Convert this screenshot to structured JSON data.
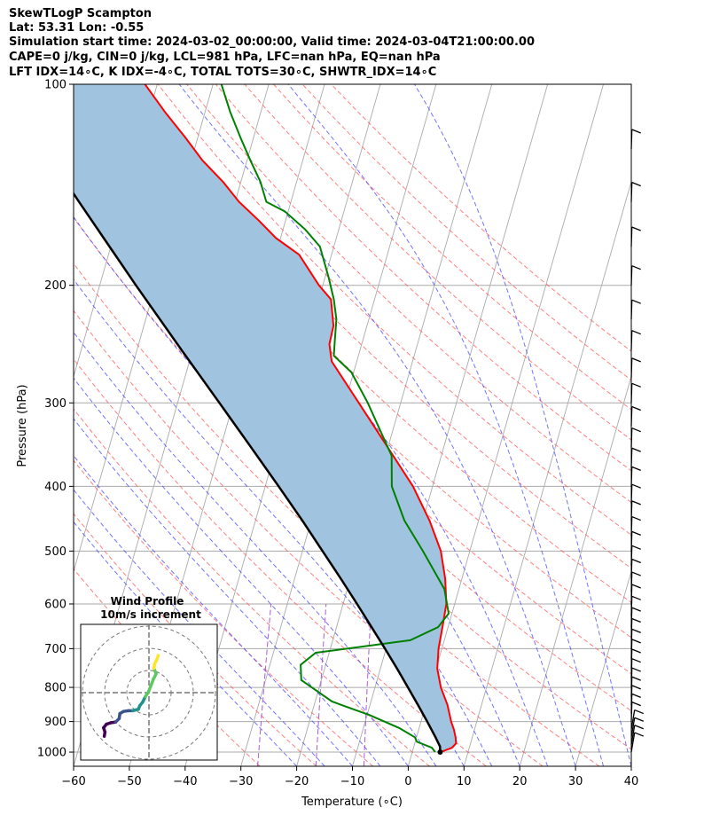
{
  "header": {
    "line1": "SkewTLogP Scampton",
    "line2": "Lat: 53.31   Lon: -0.55",
    "line3": "Simulation start time: 2024-03-02_00:00:00, Valid time: 2024-03-04T21:00:00.00",
    "line4": "CAPE=0 j/kg, CIN=0 j/kg, LCL=981 hPa, LFC=nan hPa, EQ=nan hPa",
    "line5": "LFT IDX=14∘C, K IDX=-4∘C, TOTAL TOTS=30∘C, SHWTR_IDX=14∘C"
  },
  "colors": {
    "temperature": "#ff0000",
    "dewpoint": "#008000",
    "parcel": "#000000",
    "cape_fill": "#a0c4e0",
    "dry_adiabat": "#ff5555",
    "moist_adiabat": "#4444ff",
    "mixing_ratio": "#9933cc",
    "isotherm": "#aaaaaa"
  },
  "chart_data": [
    {
      "type": "line",
      "subtype": "skew-t log-p",
      "xlabel": "Pressure (hPa)",
      "x_axis_label": "Temperature (∘C)",
      "ylabel": "Pressure (hPa)",
      "xlim": [
        -60,
        40
      ],
      "ylim": [
        1050,
        100
      ],
      "y_scale": "log",
      "x_ticks": [
        "−60",
        "−50",
        "−40",
        "−30",
        "−20",
        "−10",
        "0",
        "10",
        "20",
        "30",
        "40"
      ],
      "x_tick_values": [
        -60,
        -50,
        -40,
        -30,
        -20,
        -10,
        0,
        10,
        20,
        30,
        40
      ],
      "y_ticks": [
        "100",
        "200",
        "300",
        "400",
        "500",
        "600",
        "700",
        "800",
        "900",
        "1000"
      ],
      "y_tick_values": [
        100,
        200,
        300,
        400,
        500,
        600,
        700,
        800,
        900,
        1000
      ],
      "grid": true,
      "series": [
        {
          "key": "temperature",
          "points": [
            [
              1000,
              5.1
            ],
            [
              985,
              6.9
            ],
            [
              970,
              7.4
            ],
            [
              950,
              7.0
            ],
            [
              925,
              6.3
            ],
            [
              900,
              5.4
            ],
            [
              850,
              3.9
            ],
            [
              800,
              1.8
            ],
            [
              750,
              0.2
            ],
            [
              700,
              -0.6
            ],
            [
              650,
              -1.0
            ],
            [
              600,
              -1.5
            ],
            [
              550,
              -3.0
            ],
            [
              500,
              -5.2
            ],
            [
              450,
              -8.8
            ],
            [
              400,
              -13.5
            ],
            [
              350,
              -20.0
            ],
            [
              300,
              -27.5
            ],
            [
              260,
              -34.5
            ],
            [
              245,
              -35.8
            ],
            [
              230,
              -36.0
            ],
            [
              210,
              -37.8
            ],
            [
              200,
              -40.7
            ],
            [
              180,
              -45.8
            ],
            [
              170,
              -50.8
            ],
            [
              160,
              -54.8
            ],
            [
              150,
              -59.3
            ],
            [
              140,
              -63.2
            ],
            [
              130,
              -68.0
            ],
            [
              120,
              -72.3
            ],
            [
              110,
              -77.2
            ],
            [
              100,
              -82.2
            ]
          ]
        },
        {
          "key": "dewpoint",
          "points": [
            [
              1000,
              4.1
            ],
            [
              985,
              3.3
            ],
            [
              965,
              0.3
            ],
            [
              950,
              -0.3
            ],
            [
              920,
              -3.6
            ],
            [
              880,
              -9.6
            ],
            [
              840,
              -17.0
            ],
            [
              780,
              -23.6
            ],
            [
              740,
              -24.5
            ],
            [
              710,
              -22.4
            ],
            [
              680,
              -6.1
            ],
            [
              650,
              -1.8
            ],
            [
              620,
              -0.6
            ],
            [
              570,
              -2.6
            ],
            [
              500,
              -8.4
            ],
            [
              450,
              -13.3
            ],
            [
              400,
              -17.3
            ],
            [
              360,
              -18.9
            ],
            [
              300,
              -25.9
            ],
            [
              270,
              -30.4
            ],
            [
              255,
              -34.4
            ],
            [
              240,
              -35.1
            ],
            [
              225,
              -35.8
            ],
            [
              210,
              -37.3
            ],
            [
              195,
              -39.3
            ],
            [
              175,
              -42.5
            ],
            [
              165,
              -46.0
            ],
            [
              155,
              -50.6
            ],
            [
              150,
              -54.4
            ],
            [
              140,
              -56.5
            ],
            [
              130,
              -59.4
            ],
            [
              120,
              -62.4
            ],
            [
              110,
              -65.5
            ],
            [
              100,
              -68.5
            ]
          ]
        },
        {
          "key": "parcel",
          "points": [
            [
              1000,
              5.0
            ],
            [
              981,
              4.7
            ],
            [
              950,
              3.4
            ],
            [
              900,
              1.1
            ],
            [
              850,
              -1.4
            ],
            [
              800,
              -4.1
            ],
            [
              750,
              -7.0
            ],
            [
              700,
              -10.2
            ],
            [
              650,
              -13.7
            ],
            [
              600,
              -17.5
            ],
            [
              550,
              -21.7
            ],
            [
              500,
              -26.4
            ],
            [
              450,
              -31.6
            ],
            [
              400,
              -37.6
            ],
            [
              350,
              -44.5
            ],
            [
              300,
              -52.5
            ],
            [
              250,
              -62.0
            ],
            [
              200,
              -73.5
            ],
            [
              150,
              -88.0
            ],
            [
              100,
              -108.0
            ]
          ]
        }
      ],
      "wind_barbs": true
    },
    {
      "type": "line",
      "subtype": "hodograph",
      "title": "Wind Profile",
      "subtitle": "10m/s increment",
      "rings": 3,
      "points": [
        [
          -3.8,
          -2.4
        ],
        [
          -3.7,
          -1.8
        ],
        [
          -3.9,
          -1.2
        ],
        [
          -3.5,
          -0.7
        ],
        [
          -2.9,
          -0.5
        ],
        [
          -2.2,
          -0.4
        ],
        [
          -1.7,
          0.1
        ],
        [
          -1.6,
          0.8
        ],
        [
          -1.1,
          1.1
        ],
        [
          -0.4,
          1.2
        ],
        [
          0.2,
          1.2
        ],
        [
          0.6,
          1.3
        ],
        [
          1.0,
          1.4
        ],
        [
          1.2,
          1.9
        ],
        [
          1.6,
          2.4
        ],
        [
          2.0,
          3.2
        ],
        [
          2.4,
          3.8
        ],
        [
          2.8,
          4.8
        ],
        [
          3.1,
          5.6
        ],
        [
          3.5,
          6.4
        ],
        [
          3.2,
          7.2
        ],
        [
          3.3,
          7.8
        ],
        [
          3.6,
          8.4
        ],
        [
          3.8,
          9.0
        ]
      ]
    }
  ]
}
